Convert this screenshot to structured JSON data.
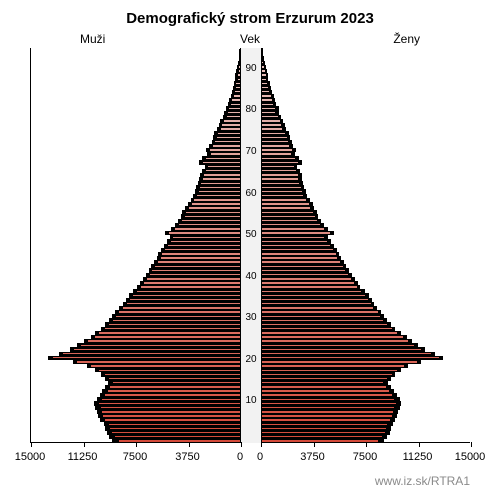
{
  "title": "Demografický strom Erzurum 2023",
  "labels": {
    "left": "Muži",
    "center": "Vek",
    "right": "Ženy"
  },
  "footer": "www.iz.sk/RTRA1",
  "chart": {
    "type": "population-pyramid",
    "background_color": "#ffffff",
    "center_band_color": "#f2f2f2",
    "axis_color": "#000000",
    "bar_border_color": "#000000",
    "shadow_color": "#000000",
    "title_fontsize": 15,
    "label_fontsize": 12,
    "tick_fontsize": 11,
    "ytick_fontsize": 10,
    "gradient": {
      "bottom": "#d44a3a",
      "top": "#e8c4c0"
    },
    "x_max": 15000,
    "x_ticks_left": [
      15000,
      11250,
      7500,
      3750,
      0
    ],
    "x_ticks_right": [
      0,
      3750,
      7500,
      11250,
      15000
    ],
    "y_ticks": [
      10,
      20,
      30,
      40,
      50,
      60,
      70,
      80,
      90
    ],
    "age_min": 0,
    "age_max": 94,
    "male": [
      8800,
      9100,
      9300,
      9400,
      9500,
      9800,
      9900,
      10000,
      10100,
      10200,
      10000,
      9800,
      9600,
      9400,
      9200,
      9500,
      9800,
      10200,
      10800,
      11800,
      13500,
      12800,
      12000,
      11500,
      11000,
      10500,
      10200,
      9800,
      9500,
      9200,
      9000,
      8800,
      8500,
      8200,
      8000,
      7800,
      7500,
      7200,
      7000,
      6800,
      6600,
      6400,
      6200,
      6000,
      5800,
      5700,
      5500,
      5300,
      5100,
      4900,
      5200,
      4800,
      4500,
      4300,
      4100,
      4000,
      3800,
      3600,
      3400,
      3200,
      3100,
      3000,
      2900,
      2800,
      2700,
      2600,
      2400,
      2800,
      2600,
      2200,
      2300,
      2100,
      1900,
      1800,
      1700,
      1500,
      1400,
      1300,
      1100,
      1000,
      950,
      800,
      700,
      600,
      500,
      450,
      400,
      300,
      300,
      250,
      200,
      150,
      100,
      80,
      50
    ],
    "female": [
      8400,
      8700,
      8900,
      9000,
      9100,
      9300,
      9400,
      9500,
      9600,
      9700,
      9600,
      9400,
      9200,
      9000,
      8800,
      9100,
      9400,
      9800,
      10300,
      11200,
      12800,
      12200,
      11500,
      11000,
      10600,
      10200,
      9800,
      9400,
      9100,
      8800,
      8600,
      8400,
      8100,
      7900,
      7700,
      7500,
      7200,
      6900,
      6700,
      6500,
      6300,
      6100,
      5900,
      5700,
      5500,
      5400,
      5200,
      5000,
      4800,
      4600,
      5000,
      4600,
      4300,
      4100,
      3900,
      3800,
      3600,
      3500,
      3300,
      3100,
      3000,
      2900,
      2800,
      2700,
      2700,
      2600,
      2400,
      2700,
      2500,
      2200,
      2300,
      2100,
      2000,
      1900,
      1800,
      1600,
      1500,
      1400,
      1250,
      1100,
      1100,
      950,
      850,
      750,
      650,
      550,
      500,
      400,
      400,
      350,
      280,
      220,
      150,
      120,
      80
    ],
    "male_shadow": [
      9200,
      9400,
      9600,
      9700,
      9800,
      10100,
      10200,
      10300,
      10400,
      10500,
      10300,
      10100,
      9900,
      9700,
      9500,
      9700,
      10000,
      10400,
      11000,
      12000,
      13800,
      13000,
      12200,
      11700,
      11200,
      10700,
      10400,
      10000,
      9700,
      9400,
      9200,
      9000,
      8700,
      8400,
      8200,
      8000,
      7700,
      7400,
      7200,
      7000,
      6800,
      6600,
      6400,
      6200,
      6000,
      5900,
      5700,
      5500,
      5300,
      5100,
      5400,
      5000,
      4700,
      4500,
      4300,
      4200,
      4000,
      3800,
      3600,
      3400,
      3300,
      3200,
      3100,
      3000,
      2900,
      2800,
      2600,
      3000,
      2800,
      2400,
      2500,
      2300,
      2100,
      2000,
      1900,
      1700,
      1600,
      1500,
      1300,
      1200,
      1100,
      950,
      850,
      750,
      650,
      550,
      500,
      400,
      400,
      330,
      280,
      220,
      160,
      120,
      80
    ],
    "female_shadow": [
      8800,
      9000,
      9200,
      9300,
      9400,
      9600,
      9700,
      9800,
      9900,
      10000,
      9900,
      9700,
      9500,
      9300,
      9100,
      9300,
      9600,
      10000,
      10500,
      11400,
      13000,
      12400,
      11700,
      11200,
      10800,
      10400,
      10000,
      9600,
      9300,
      9000,
      8800,
      8600,
      8300,
      8100,
      7900,
      7700,
      7400,
      7100,
      6900,
      6700,
      6500,
      6300,
      6100,
      5900,
      5700,
      5600,
      5400,
      5200,
      5000,
      4800,
      5200,
      4800,
      4500,
      4300,
      4100,
      4000,
      3800,
      3700,
      3500,
      3300,
      3200,
      3100,
      3000,
      2900,
      2900,
      2800,
      2600,
      2900,
      2700,
      2400,
      2500,
      2300,
      2200,
      2100,
      2000,
      1800,
      1700,
      1600,
      1400,
      1300,
      1250,
      1100,
      1000,
      900,
      800,
      700,
      650,
      500,
      500,
      450,
      360,
      290,
      200,
      170,
      120
    ]
  }
}
